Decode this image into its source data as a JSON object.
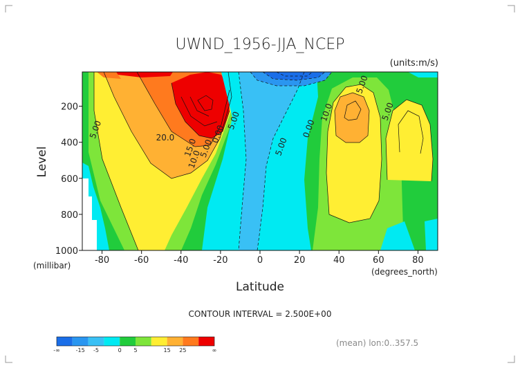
{
  "title": "UWND_1956-JJA_NCEP",
  "units": "(units:m/s)",
  "contour_interval": "CONTOUR INTERVAL = 2.500E+00",
  "mean_note": "(mean) lon:0..357.5",
  "colorbar": {
    "labels": [
      "-∞",
      "-15",
      "-5",
      "0",
      "5",
      "15",
      "25",
      "∞"
    ],
    "colors": [
      "#1a6ee8",
      "#2a96f0",
      "#39c0f5",
      "#00eaf2",
      "#21cc3c",
      "#7ee53a",
      "#ffee33",
      "#ffb133",
      "#ff7a1e",
      "#ee0000"
    ]
  },
  "chart_data": {
    "type": "heatmap",
    "title": "UWND_1956-JJA_NCEP",
    "subtitle": "(units:m/s)",
    "xlabel": "Latitude",
    "xunit": "(degrees_north)",
    "ylabel": "Level",
    "yunit": "(millibar)",
    "xlim": [
      -90,
      90
    ],
    "ylim": [
      1000,
      10
    ],
    "xticks": [
      -80,
      -60,
      -40,
      -20,
      0,
      20,
      40,
      60,
      80
    ],
    "xtick_labels": [
      "-80",
      "-60",
      "-40",
      "-20",
      "0",
      "20",
      "40",
      "60",
      "80"
    ],
    "yticks": [
      200,
      400,
      600,
      800,
      1000
    ],
    "ytick_labels": [
      "200",
      "400",
      "600",
      "800",
      "1000"
    ],
    "contour_labels": [
      {
        "text": "5.00",
        "lat": -82,
        "lev": 335
      },
      {
        "text": "20.0",
        "lat": -48,
        "lev": 390
      },
      {
        "text": "15.0",
        "lat": -34,
        "lev": 435
      },
      {
        "text": "10.0",
        "lat": -32,
        "lev": 500
      },
      {
        "text": "5.00",
        "lat": -26,
        "lev": 440
      },
      {
        "text": "0.00",
        "lat": -20,
        "lev": 360
      },
      {
        "text": "5.00",
        "lat": -12,
        "lev": 285
      },
      {
        "text": "5.00",
        "lat": 12,
        "lev": 430
      },
      {
        "text": "0.00",
        "lat": 26,
        "lev": 330
      },
      {
        "text": "10.0",
        "lat": 35,
        "lev": 240
      },
      {
        "text": "5.00",
        "lat": 53,
        "lev": 85
      },
      {
        "text": "5.00",
        "lat": 66,
        "lev": 235
      }
    ],
    "features": [
      {
        "name": "southern hemisphere westerly jet core",
        "lat": -30,
        "lev": 200,
        "value": 32
      },
      {
        "name": "northern hemisphere westerly jet core",
        "lat": 45,
        "lev": 200,
        "value": 17
      },
      {
        "name": "tropical easterlies",
        "lat": 5,
        "lev": 100,
        "value": -20
      }
    ],
    "grid": false
  }
}
